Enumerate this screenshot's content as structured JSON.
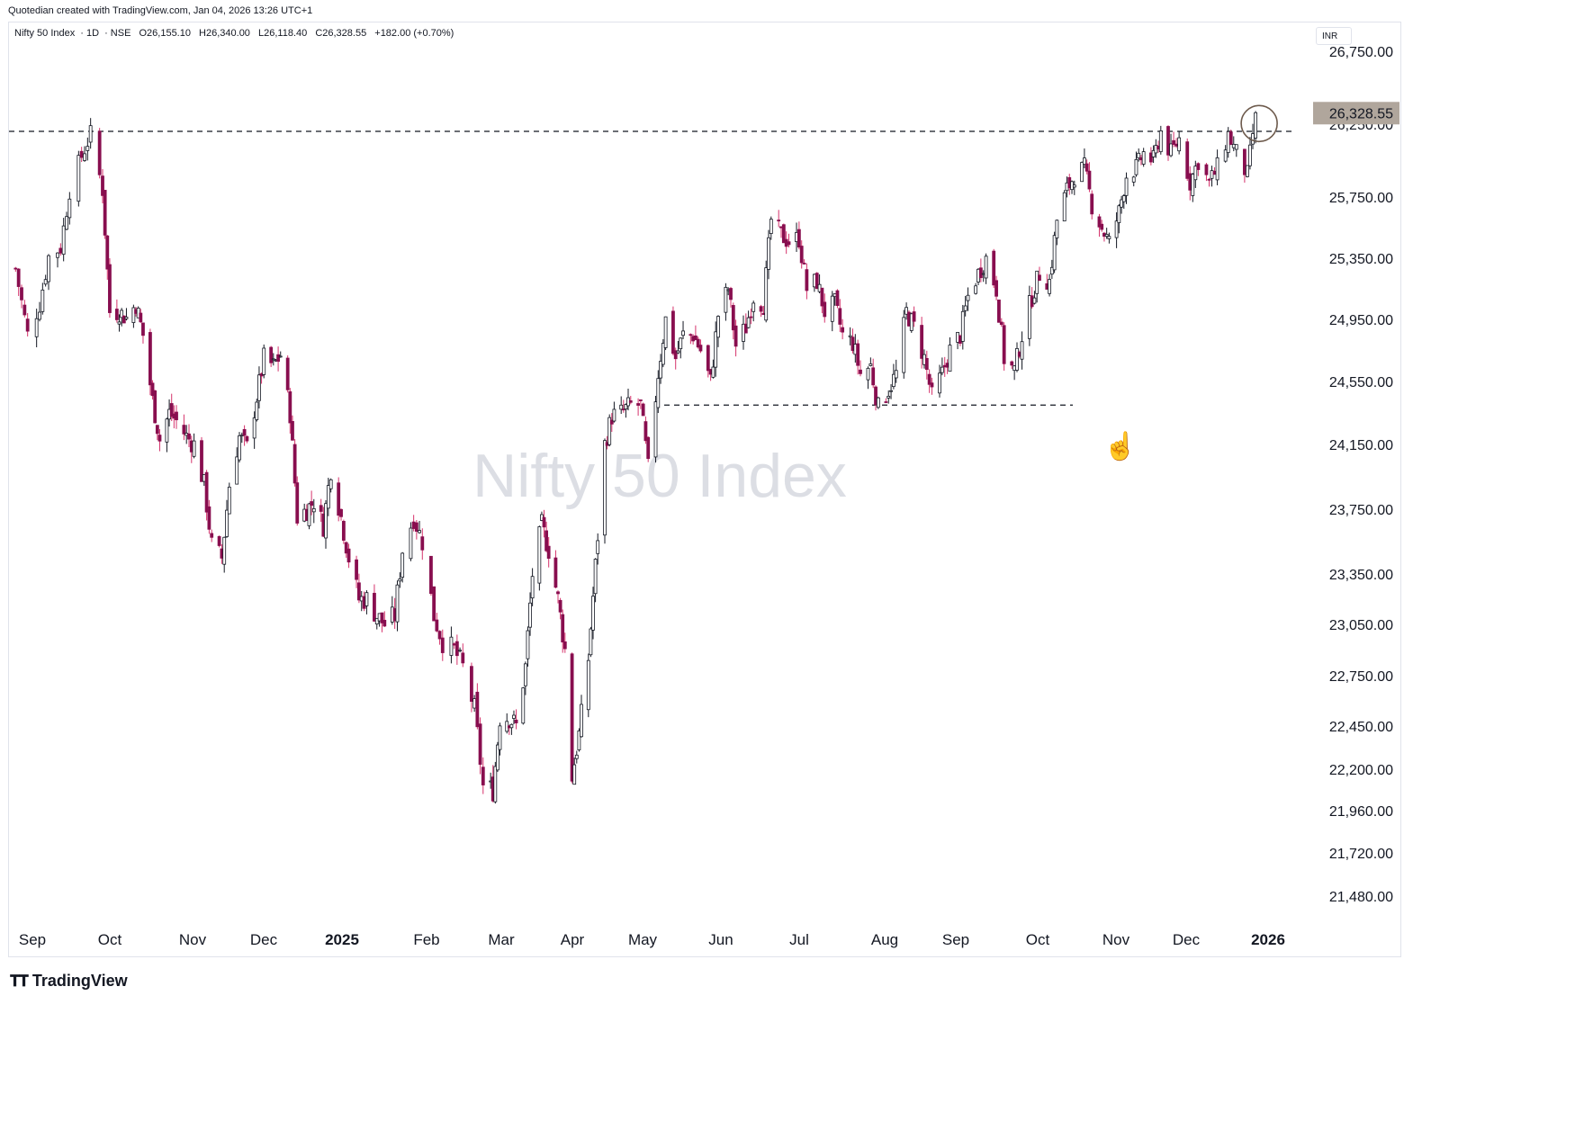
{
  "credit": "Quotedian created with TradingView.com, Jan 04, 2026 13:26 UTC+1",
  "legend": {
    "symbol": "Nifty 50 Index",
    "interval": "1D",
    "exchange": "NSE",
    "open": "O26,155.10",
    "high": "H26,340.00",
    "low": "L26,118.40",
    "close": "C26,328.55",
    "change": "+182.00 (+0.70%)"
  },
  "watermark": "Nifty 50 Index",
  "currency_label": "INR",
  "footer_brand": "TradingView",
  "colors": {
    "up": "#131722",
    "down": "#880e4f",
    "up_body": "#ffffff",
    "wick_up": "#131722",
    "wick_down": "#d6336c",
    "price_tag": "#b0a69c",
    "annotation": "#6d5a4c"
  },
  "chart_data": {
    "type": "candlestick",
    "title": "",
    "y_axis": {
      "ticks": [
        26750,
        26250,
        25750,
        25350,
        24950,
        24550,
        24150,
        23750,
        23350,
        23050,
        22750,
        22450,
        22200,
        21960,
        21720,
        21480
      ],
      "tick_labels": [
        "26,750.00",
        "26,250.00",
        "25,750.00",
        "25,350.00",
        "24,950.00",
        "24,550.00",
        "24,150.00",
        "23,750.00",
        "23,350.00",
        "23,050.00",
        "22,750.00",
        "22,450.00",
        "22,200.00",
        "21,960.00",
        "21,720.00",
        "21,480.00"
      ]
    },
    "x_axis": {
      "tick_labels": [
        "Sep",
        "Oct",
        "Nov",
        "Dec",
        "2025",
        "Feb",
        "Mar",
        "Apr",
        "May",
        "Jun",
        "Jul",
        "Aug",
        "Sep",
        "Oct",
        "Nov",
        "Dec",
        "2026"
      ],
      "bold_labels": [
        "2025",
        "2026"
      ]
    },
    "last_price": 26328.55,
    "last_price_label": "26,328.55",
    "resistance_level": 26250,
    "support_level": 24400,
    "close_path": [
      [
        "2024-09-02",
        25280
      ],
      [
        "2024-09-06",
        24850
      ],
      [
        "2024-09-10",
        25050
      ],
      [
        "2024-09-13",
        25360
      ],
      [
        "2024-09-17",
        25420
      ],
      [
        "2024-09-20",
        25800
      ],
      [
        "2024-09-24",
        26030
      ],
      [
        "2024-09-27",
        26180
      ],
      [
        "2024-10-01",
        25800
      ],
      [
        "2024-10-04",
        25000
      ],
      [
        "2024-10-08",
        25000
      ],
      [
        "2024-10-11",
        24960
      ],
      [
        "2024-10-15",
        25050
      ],
      [
        "2024-10-18",
        24850
      ],
      [
        "2024-10-22",
        24430
      ],
      [
        "2024-10-25",
        24180
      ],
      [
        "2024-10-29",
        24350
      ],
      [
        "2024-11-01",
        24300
      ],
      [
        "2024-11-05",
        24200
      ],
      [
        "2024-11-08",
        24150
      ],
      [
        "2024-11-12",
        23900
      ],
      [
        "2024-11-15",
        23530
      ],
      [
        "2024-11-19",
        23450
      ],
      [
        "2024-11-22",
        23900
      ],
      [
        "2024-11-26",
        24200
      ],
      [
        "2024-11-29",
        24130
      ],
      [
        "2024-12-03",
        24450
      ],
      [
        "2024-12-06",
        24700
      ],
      [
        "2024-12-10",
        24650
      ],
      [
        "2024-12-13",
        24720
      ],
      [
        "2024-12-17",
        24350
      ],
      [
        "2024-12-20",
        23700
      ],
      [
        "2024-12-24",
        23750
      ],
      [
        "2024-12-27",
        23800
      ],
      [
        "2024-12-31",
        23650
      ],
      [
        "2025-01-03",
        24000
      ],
      [
        "2025-01-07",
        23700
      ],
      [
        "2025-01-10",
        23450
      ],
      [
        "2025-01-14",
        23200
      ],
      [
        "2025-01-17",
        23200
      ],
      [
        "2025-01-21",
        23100
      ],
      [
        "2025-01-24",
        23050
      ],
      [
        "2025-01-28",
        23100
      ],
      [
        "2025-01-31",
        23500
      ],
      [
        "2025-02-04",
        23700
      ],
      [
        "2025-02-07",
        23550
      ],
      [
        "2025-02-11",
        23100
      ],
      [
        "2025-02-14",
        22950
      ],
      [
        "2025-02-18",
        22900
      ],
      [
        "2025-02-21",
        22800
      ],
      [
        "2025-02-25",
        22550
      ],
      [
        "2025-02-28",
        22100
      ],
      [
        "2025-03-04",
        22080
      ],
      [
        "2025-03-07",
        22500
      ],
      [
        "2025-03-11",
        22500
      ],
      [
        "2025-03-14",
        22450
      ],
      [
        "2025-03-18",
        22800
      ],
      [
        "2025-03-21",
        23350
      ],
      [
        "2025-03-25",
        23650
      ],
      [
        "2025-03-28",
        23500
      ],
      [
        "2025-04-01",
        23200
      ],
      [
        "2025-04-04",
        22900
      ],
      [
        "2025-04-07",
        22160
      ],
      [
        "2025-04-10",
        22400
      ],
      [
        "2025-04-14",
        22850
      ],
      [
        "2025-04-17",
        23400
      ],
      [
        "2025-04-21",
        24150
      ],
      [
        "2025-04-24",
        24330
      ],
      [
        "2025-04-28",
        24350
      ],
      [
        "2025-05-02",
        24400
      ],
      [
        "2025-05-06",
        24400
      ],
      [
        "2025-05-09",
        24000
      ],
      [
        "2025-05-13",
        24600
      ],
      [
        "2025-05-16",
        24950
      ],
      [
        "2025-05-20",
        24700
      ],
      [
        "2025-05-23",
        24850
      ],
      [
        "2025-05-27",
        24850
      ],
      [
        "2025-05-30",
        24750
      ],
      [
        "2025-06-03",
        24550
      ],
      [
        "2025-06-06",
        24980
      ],
      [
        "2025-06-10",
        25150
      ],
      [
        "2025-06-13",
        24780
      ],
      [
        "2025-06-17",
        24900
      ],
      [
        "2025-06-20",
        25100
      ],
      [
        "2025-06-24",
        25050
      ],
      [
        "2025-06-27",
        25600
      ],
      [
        "2025-07-01",
        25500
      ],
      [
        "2025-07-04",
        25460
      ],
      [
        "2025-07-08",
        25480
      ],
      [
        "2025-07-11",
        25150
      ],
      [
        "2025-07-15",
        25200
      ],
      [
        "2025-07-18",
        25000
      ],
      [
        "2025-07-22",
        25050
      ],
      [
        "2025-07-25",
        24850
      ],
      [
        "2025-07-29",
        24800
      ],
      [
        "2025-08-01",
        24600
      ],
      [
        "2025-08-05",
        24650
      ],
      [
        "2025-08-08",
        24380
      ],
      [
        "2025-08-12",
        24500
      ],
      [
        "2025-08-15",
        24600
      ],
      [
        "2025-08-19",
        25000
      ],
      [
        "2025-08-22",
        24900
      ],
      [
        "2025-08-26",
        24700
      ],
      [
        "2025-08-29",
        24450
      ],
      [
        "2025-09-02",
        24600
      ],
      [
        "2025-09-05",
        24750
      ],
      [
        "2025-09-09",
        24850
      ],
      [
        "2025-09-12",
        25100
      ],
      [
        "2025-09-16",
        25250
      ],
      [
        "2025-09-19",
        25350
      ],
      [
        "2025-09-23",
        25150
      ],
      [
        "2025-09-26",
        24700
      ],
      [
        "2025-09-30",
        24620
      ],
      [
        "2025-10-03",
        24850
      ],
      [
        "2025-10-07",
        25100
      ],
      [
        "2025-10-10",
        25250
      ],
      [
        "2025-10-14",
        25200
      ],
      [
        "2025-10-17",
        25600
      ],
      [
        "2025-10-21",
        25800
      ],
      [
        "2025-10-24",
        25900
      ],
      [
        "2025-10-28",
        25950
      ],
      [
        "2025-10-31",
        25700
      ],
      [
        "2025-11-04",
        25550
      ],
      [
        "2025-11-07",
        25450
      ],
      [
        "2025-11-11",
        25650
      ],
      [
        "2025-11-14",
        25900
      ],
      [
        "2025-11-18",
        25950
      ],
      [
        "2025-11-21",
        26050
      ],
      [
        "2025-11-25",
        26000
      ],
      [
        "2025-11-28",
        26200
      ],
      [
        "2025-12-02",
        26050
      ],
      [
        "2025-12-05",
        26150
      ],
      [
        "2025-12-09",
        25850
      ],
      [
        "2025-12-12",
        26000
      ],
      [
        "2025-12-16",
        25850
      ],
      [
        "2025-12-19",
        25950
      ],
      [
        "2025-12-23",
        26180
      ],
      [
        "2025-12-26",
        26050
      ],
      [
        "2025-12-30",
        25900
      ],
      [
        "2026-01-02",
        26328.55
      ]
    ],
    "grid": false,
    "legend": "top-left"
  }
}
